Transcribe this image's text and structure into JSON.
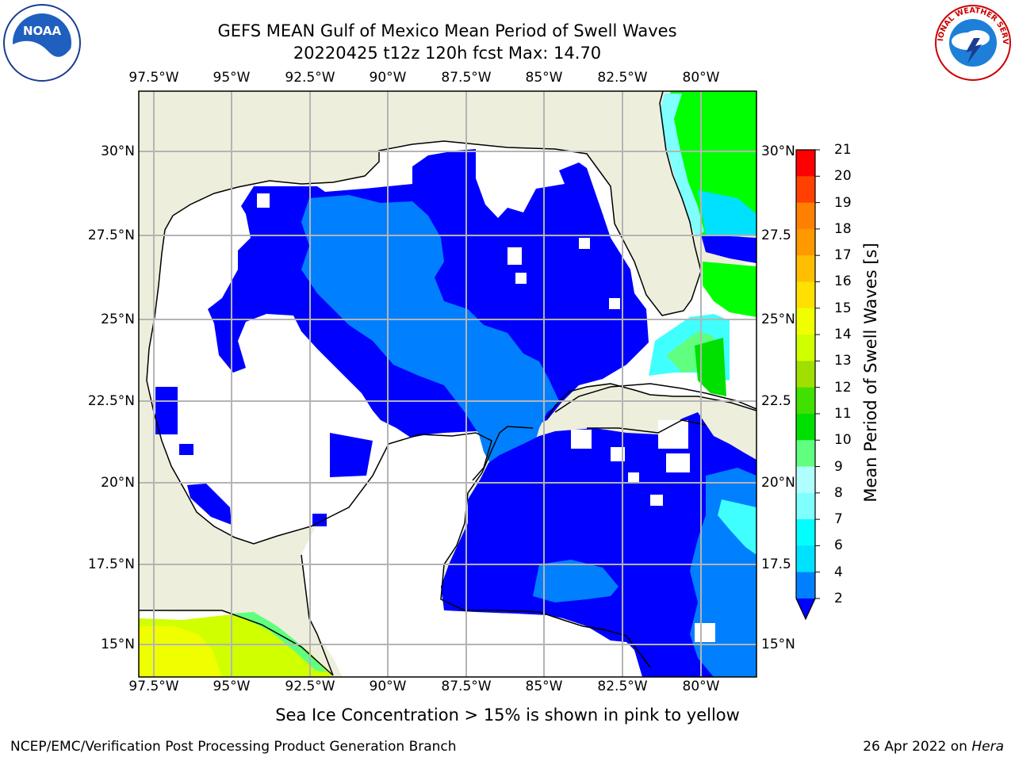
{
  "title": {
    "line1": "GEFS MEAN Gulf of Mexico Mean Period of Swell Waves",
    "line2": "20220425 t12z 120h fcst   Max: 14.70"
  },
  "map": {
    "lon_ticks": [
      "97.5°W",
      "95°W",
      "92.5°W",
      "90°W",
      "87.5°W",
      "85°W",
      "82.5°W",
      "80°W"
    ],
    "lat_ticks_left": [
      "30°N",
      "27.5°N",
      "25°N",
      "22.5°N",
      "20°N",
      "17.5°N",
      "15°N"
    ],
    "lat_ticks_right": [
      "30°N",
      "27.5",
      "25°N",
      "22.5",
      "20°N",
      "17.5",
      "15°N"
    ],
    "colors": {
      "land": "#eeeedc",
      "grid": "#b4b4b4",
      "coast": "#000000"
    }
  },
  "colorbar": {
    "label": "Mean Period of Swell Waves [s]",
    "ticks": [
      "21",
      "20",
      "19",
      "18",
      "17",
      "16",
      "15",
      "14",
      "13",
      "12",
      "11",
      "10",
      "9",
      "8",
      "7",
      "6",
      "4",
      "2"
    ],
    "colors": [
      "#0000ff",
      "#0080ff",
      "#00e0ff",
      "#00ffff",
      "#40ffff",
      "#80ffff",
      "#b0ffff",
      "#60ff80",
      "#00e000",
      "#00ff00",
      "#40e000",
      "#a0e000",
      "#d0ff00",
      "#f0ff00",
      "#ffff00",
      "#ffe000",
      "#ffbf00",
      "#ff9900",
      "#ff8000",
      "#ff6600",
      "#ff4000",
      "#ff0000"
    ]
  },
  "footnote": "Sea Ice Concentration > 15% is shown in pink to yellow",
  "credit": "NCEP/EMC/Verification Post Processing Product Generation Branch",
  "date": {
    "text": "26 Apr 2022 on ",
    "machine": "Hera"
  },
  "logos": {
    "left": "NOAA",
    "right": "NATIONAL WEATHER SERVICE"
  }
}
